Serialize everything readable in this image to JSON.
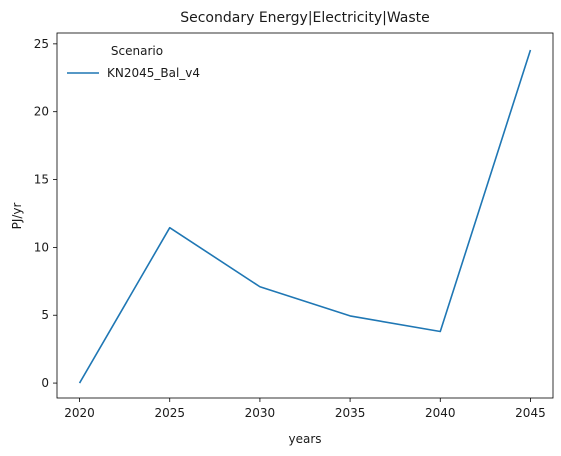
{
  "chart_data": {
    "type": "line",
    "title": "Secondary Energy|Electricity|Waste",
    "xlabel": "years",
    "ylabel": "PJ/yr",
    "x": [
      2020,
      2025,
      2030,
      2035,
      2040,
      2045
    ],
    "series": [
      {
        "name": "KN2045_Bal_v4",
        "values": [
          0.0,
          11.45,
          7.1,
          4.95,
          3.8,
          24.55
        ],
        "color": "#1f77b4"
      }
    ],
    "xticks": [
      "2020",
      "2025",
      "2030",
      "2035",
      "2040",
      "2045"
    ],
    "yticks": [
      "0",
      "5",
      "10",
      "15",
      "20",
      "25"
    ],
    "xlim": [
      2018.75,
      2046.25
    ],
    "ylim": [
      -1.1,
      25.8
    ],
    "legend": {
      "title": "Scenario",
      "placement": "top-left"
    },
    "grid": false
  }
}
